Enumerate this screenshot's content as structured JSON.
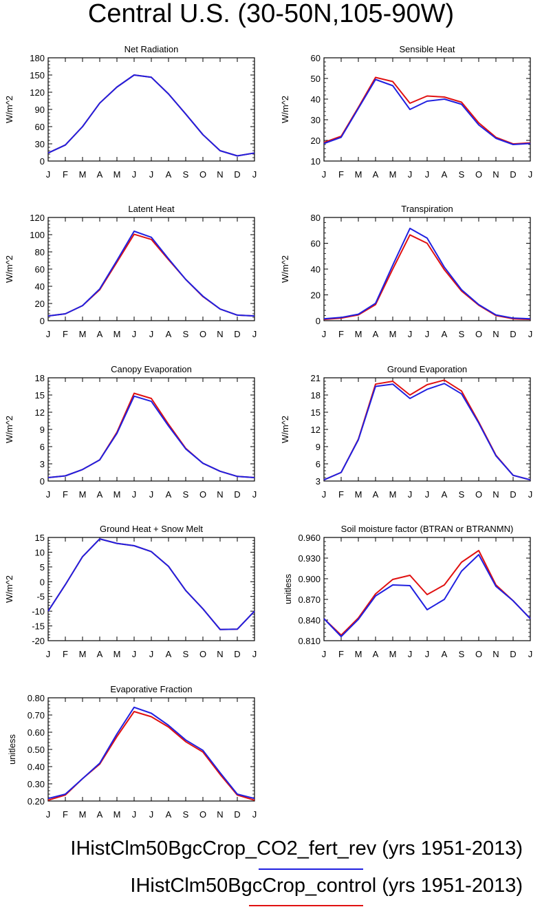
{
  "title": "Central U.S. (30-50N,105-90W)",
  "colors": {
    "run1": "#2020e0",
    "run2": "#e01010"
  },
  "legend": [
    {
      "label": "IHistClm50BgcCrop_CO2_fert_rev (yrs 1951-2013)",
      "color": "#2020e0"
    },
    {
      "label": "IHistClm50BgcCrop_control (yrs 1951-2013)",
      "color": "#e01010"
    }
  ],
  "chart_data": [
    {
      "type": "line",
      "title": "Net Radiation",
      "ylabel": "W/m^2",
      "x": [
        "J",
        "F",
        "M",
        "A",
        "M",
        "J",
        "J",
        "A",
        "S",
        "O",
        "N",
        "D",
        "J"
      ],
      "ylim": [
        0,
        180
      ],
      "yticks": [
        "0",
        "30",
        "60",
        "90",
        "120",
        "150",
        "180"
      ],
      "series": [
        {
          "values": [
            14,
            28,
            60,
            101,
            129,
            150,
            146,
            117,
            82,
            46,
            18,
            9,
            14
          ]
        },
        {
          "values": [
            14,
            28,
            60,
            101,
            129,
            150,
            146,
            117,
            82,
            46,
            18,
            9,
            14
          ]
        }
      ]
    },
    {
      "type": "line",
      "title": "Sensible Heat",
      "ylabel": "W/m^2",
      "x": [
        "J",
        "F",
        "M",
        "A",
        "M",
        "J",
        "J",
        "A",
        "S",
        "O",
        "N",
        "D",
        "J"
      ],
      "ylim": [
        10,
        60
      ],
      "yticks": [
        "10",
        "20",
        "30",
        "40",
        "50",
        "60"
      ],
      "series": [
        {
          "values": [
            18.5,
            21.5,
            35.5,
            49.5,
            46.5,
            35,
            39,
            40,
            37.5,
            27.5,
            21,
            18,
            18.5
          ]
        },
        {
          "values": [
            19,
            22,
            36,
            50.5,
            48.5,
            38,
            41.5,
            41,
            38.5,
            28.5,
            21.5,
            18.3,
            18.8
          ]
        }
      ]
    },
    {
      "type": "line",
      "title": "Latent Heat",
      "ylabel": "W/m^2",
      "x": [
        "J",
        "F",
        "M",
        "A",
        "M",
        "J",
        "J",
        "A",
        "S",
        "O",
        "N",
        "D",
        "J"
      ],
      "ylim": [
        0,
        120
      ],
      "yticks": [
        "0",
        "20",
        "40",
        "60",
        "80",
        "100",
        "120"
      ],
      "series": [
        {
          "values": [
            5.5,
            8,
            17.5,
            37,
            70,
            104,
            97,
            72,
            48,
            28.5,
            13.5,
            6.5,
            5.5
          ]
        },
        {
          "values": [
            5.5,
            8,
            17.5,
            36,
            68,
            100.5,
            94.5,
            71,
            48,
            28,
            13.5,
            6.5,
            5.5
          ]
        }
      ]
    },
    {
      "type": "line",
      "title": "Transpiration",
      "ylabel": "W/m^2",
      "x": [
        "J",
        "F",
        "M",
        "A",
        "M",
        "J",
        "J",
        "A",
        "S",
        "O",
        "N",
        "D",
        "J"
      ],
      "ylim": [
        0,
        80
      ],
      "yticks": [
        "0",
        "20",
        "40",
        "60",
        "80"
      ],
      "series": [
        {
          "values": [
            1.5,
            2.5,
            5,
            13.5,
            43,
            71.5,
            64,
            41.5,
            24,
            12.5,
            4.5,
            2,
            1.5
          ]
        },
        {
          "values": [
            1,
            2,
            4.5,
            12.5,
            40,
            66.5,
            60,
            39.5,
            23,
            12,
            4,
            1.5,
            1
          ]
        }
      ]
    },
    {
      "type": "line",
      "title": "Canopy Evaporation",
      "ylabel": "W/m^2",
      "x": [
        "J",
        "F",
        "M",
        "A",
        "M",
        "J",
        "J",
        "A",
        "S",
        "O",
        "N",
        "D",
        "J"
      ],
      "ylim": [
        0,
        18
      ],
      "yticks": [
        "0",
        "3",
        "6",
        "9",
        "12",
        "15",
        "18"
      ],
      "series": [
        {
          "values": [
            0.6,
            0.9,
            2,
            3.7,
            8.3,
            14.8,
            13.9,
            9.6,
            5.6,
            3.1,
            1.7,
            0.8,
            0.6
          ]
        },
        {
          "values": [
            0.6,
            0.9,
            2,
            3.7,
            8.5,
            15.3,
            14.4,
            9.9,
            5.7,
            3.1,
            1.7,
            0.8,
            0.6
          ]
        }
      ]
    },
    {
      "type": "line",
      "title": "Ground Evaporation",
      "ylabel": "W/m^2",
      "x": [
        "J",
        "F",
        "M",
        "A",
        "M",
        "J",
        "J",
        "A",
        "S",
        "O",
        "N",
        "D",
        "J"
      ],
      "ylim": [
        3,
        21
      ],
      "yticks": [
        "3",
        "6",
        "9",
        "12",
        "15",
        "18",
        "21"
      ],
      "series": [
        {
          "values": [
            3.2,
            4.5,
            10.2,
            19.5,
            19.9,
            17.4,
            19,
            20,
            18.2,
            13.1,
            7.4,
            4,
            3.2
          ]
        },
        {
          "values": [
            3.2,
            4.5,
            10.3,
            19.9,
            20.4,
            18,
            19.8,
            20.6,
            18.7,
            13.3,
            7.5,
            4,
            3.2
          ]
        }
      ]
    },
    {
      "type": "line",
      "title": "Ground Heat + Snow Melt",
      "ylabel": "W/m^2",
      "x": [
        "J",
        "F",
        "M",
        "A",
        "M",
        "J",
        "J",
        "A",
        "S",
        "O",
        "N",
        "D",
        "J"
      ],
      "ylim": [
        -20,
        15
      ],
      "yticks": [
        "-20",
        "-15",
        "-10",
        "-5",
        "0",
        "5",
        "10",
        "15"
      ],
      "series": [
        {
          "values": [
            -10,
            -1,
            8.5,
            14.5,
            13,
            12.2,
            10.2,
            5.2,
            -3,
            -9.2,
            -16.2,
            -16.1,
            -10
          ]
        },
        {
          "values": [
            -10,
            -1,
            8.5,
            14.5,
            13,
            12.2,
            10.2,
            5.2,
            -3,
            -9.2,
            -16.2,
            -16.1,
            -10
          ]
        }
      ]
    },
    {
      "type": "line",
      "title": "Soil moisture factor (BTRAN or BTRANMN)",
      "ylabel": "unitless",
      "x": [
        "J",
        "F",
        "M",
        "A",
        "M",
        "J",
        "J",
        "A",
        "S",
        "O",
        "N",
        "D",
        "J"
      ],
      "ylim": [
        0.81,
        0.96
      ],
      "yticks": [
        "0.810",
        "0.840",
        "0.870",
        "0.900",
        "0.930",
        "0.960"
      ],
      "series": [
        {
          "values": [
            0.842,
            0.816,
            0.841,
            0.875,
            0.891,
            0.89,
            0.855,
            0.87,
            0.911,
            0.935,
            0.889,
            0.868,
            0.842
          ]
        },
        {
          "values": [
            0.842,
            0.818,
            0.843,
            0.878,
            0.899,
            0.905,
            0.877,
            0.891,
            0.924,
            0.941,
            0.891,
            0.868,
            0.842
          ]
        }
      ]
    },
    {
      "type": "line",
      "title": "Evaporative Fraction",
      "ylabel": "unitless",
      "x": [
        "J",
        "F",
        "M",
        "A",
        "M",
        "J",
        "J",
        "A",
        "S",
        "O",
        "N",
        "D",
        "J"
      ],
      "ylim": [
        0.2,
        0.8
      ],
      "yticks": [
        "0.20",
        "0.30",
        "0.40",
        "0.50",
        "0.60",
        "0.70",
        "0.80"
      ],
      "series": [
        {
          "values": [
            0.215,
            0.24,
            0.33,
            0.42,
            0.59,
            0.745,
            0.71,
            0.64,
            0.555,
            0.495,
            0.365,
            0.24,
            0.215
          ]
        },
        {
          "values": [
            0.205,
            0.235,
            0.33,
            0.415,
            0.575,
            0.72,
            0.69,
            0.63,
            0.545,
            0.485,
            0.355,
            0.235,
            0.205
          ]
        }
      ]
    }
  ]
}
